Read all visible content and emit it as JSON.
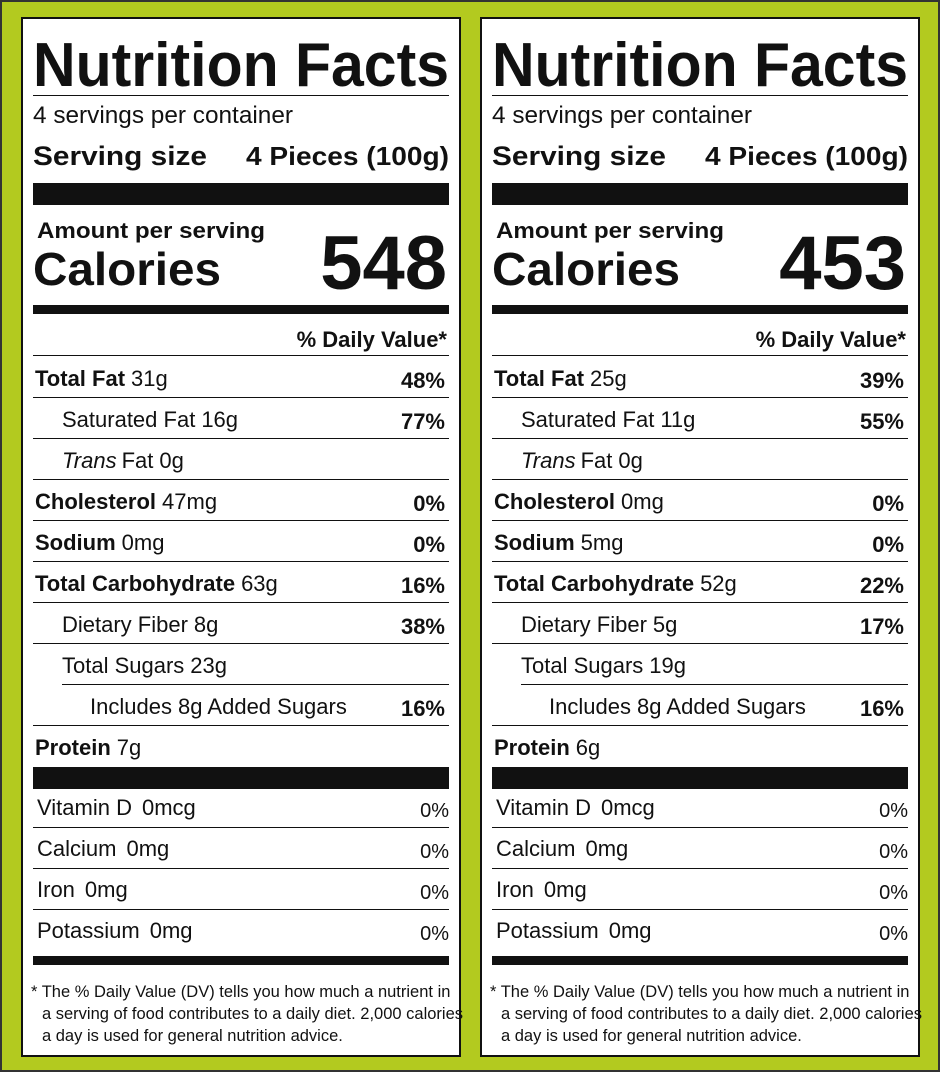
{
  "labels": [
    {
      "title": "Nutrition Facts",
      "servings": "4 servings per container",
      "serving_size_label": "Serving size",
      "serving_size": "4 Pieces (100g)",
      "amount_per_serving": "Amount per serving",
      "calories_label": "Calories",
      "calories": 548,
      "dv_header": "% Daily Value*",
      "nutrients": [
        {
          "name": "Total Fat",
          "amount": "31g",
          "dv": "48%",
          "bold": true,
          "indent": 0
        },
        {
          "name": "Saturated Fat",
          "amount": "16g",
          "dv": "77%",
          "bold": false,
          "indent": 1
        },
        {
          "name_italic": "Trans",
          "name": "Fat",
          "amount": "0g",
          "bold": false,
          "indent": 1
        },
        {
          "name": "Cholesterol",
          "amount": "47mg",
          "dv": "0%",
          "bold": true,
          "indent": 0
        },
        {
          "name": "Sodium",
          "amount": "0mg",
          "dv": "0%",
          "bold": true,
          "indent": 0
        },
        {
          "name": "Total Carbohydrate",
          "amount": "63g",
          "dv": "16%",
          "bold": true,
          "indent": 0
        },
        {
          "name": "Dietary Fiber",
          "amount": "8g",
          "dv": "38%",
          "bold": false,
          "indent": 1
        },
        {
          "name": "Total Sugars",
          "amount": "23g",
          "bold": false,
          "indent": 1
        },
        {
          "name": "Includes 8g Added Sugars",
          "dv": "16%",
          "bold": false,
          "indent": 2
        },
        {
          "name": "Protein",
          "amount": "7g",
          "bold": true,
          "indent": 0
        }
      ],
      "vitamins": [
        {
          "name": "Vitamin D",
          "amount": "0mcg",
          "dv": "0%"
        },
        {
          "name": "Calcium",
          "amount": "0mg",
          "dv": "0%"
        },
        {
          "name": "Iron",
          "amount": "0mg",
          "dv": "0%"
        },
        {
          "name": "Potassium",
          "amount": "0mg",
          "dv": "0%"
        }
      ],
      "footnote": [
        "* The % Daily Value (DV) tells you how much a nutrient in",
        "a serving of food contributes to a daily diet. 2,000 calories",
        "a day is used for general nutrition advice."
      ]
    },
    {
      "title": "Nutrition Facts",
      "servings": "4 servings per container",
      "serving_size_label": "Serving size",
      "serving_size": "4 Pieces (100g)",
      "amount_per_serving": "Amount per serving",
      "calories_label": "Calories",
      "calories": 453,
      "dv_header": "% Daily Value*",
      "nutrients": [
        {
          "name": "Total Fat",
          "amount": "25g",
          "dv": "39%",
          "bold": true,
          "indent": 0
        },
        {
          "name": "Saturated Fat",
          "amount": "11g",
          "dv": "55%",
          "bold": false,
          "indent": 1
        },
        {
          "name_italic": "Trans",
          "name": "Fat",
          "amount": "0g",
          "bold": false,
          "indent": 1
        },
        {
          "name": "Cholesterol",
          "amount": "0mg",
          "dv": "0%",
          "bold": true,
          "indent": 0
        },
        {
          "name": "Sodium",
          "amount": "5mg",
          "dv": "0%",
          "bold": true,
          "indent": 0
        },
        {
          "name": "Total Carbohydrate",
          "amount": "52g",
          "dv": "22%",
          "bold": true,
          "indent": 0
        },
        {
          "name": "Dietary Fiber",
          "amount": "5g",
          "dv": "17%",
          "bold": false,
          "indent": 1
        },
        {
          "name": "Total Sugars",
          "amount": "19g",
          "bold": false,
          "indent": 1
        },
        {
          "name": "Includes 8g Added Sugars",
          "dv": "16%",
          "bold": false,
          "indent": 2
        },
        {
          "name": "Protein",
          "amount": "6g",
          "bold": true,
          "indent": 0
        }
      ],
      "vitamins": [
        {
          "name": "Vitamin D",
          "amount": "0mcg",
          "dv": "0%"
        },
        {
          "name": "Calcium",
          "amount": "0mg",
          "dv": "0%"
        },
        {
          "name": "Iron",
          "amount": "0mg",
          "dv": "0%"
        },
        {
          "name": "Potassium",
          "amount": "0mg",
          "dv": "0%"
        }
      ],
      "footnote": [
        "* The % Daily Value (DV) tells you how much a nutrient in",
        "a serving of food contributes to a daily diet. 2,000 calories",
        "a day is used for general nutrition advice."
      ]
    }
  ]
}
